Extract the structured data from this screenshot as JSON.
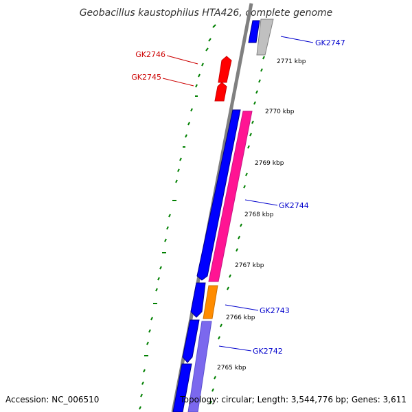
{
  "title": "Geobacillus kaustophilus HTA426, complete genome",
  "footer": {
    "accession": "Accession: NC_006510",
    "summary": "Topology: circular; Length: 3,544,776 bp; Genes: 3,611"
  },
  "ticks": [
    "2771 kbp",
    "2770 kbp",
    "2769 kbp",
    "2768 kbp",
    "2767 kbp",
    "2766 kbp",
    "2765 kbp"
  ],
  "genes": [
    {
      "id": "GK2747",
      "strand": "forward",
      "color": "#0000ff"
    },
    {
      "id": "GK2746",
      "strand": "reverse",
      "color": "#ff0000"
    },
    {
      "id": "GK2745",
      "strand": "reverse",
      "color": "#ff0000"
    },
    {
      "id": "GK2744",
      "strand": "forward",
      "color": "#0000ff"
    },
    {
      "id": "GK2743",
      "strand": "forward",
      "color": "#0000ff"
    },
    {
      "id": "GK2742",
      "strand": "forward",
      "color": "#0000ff"
    }
  ],
  "colors": {
    "backbone": "#808080",
    "gc_skew": "#008000",
    "cds": "#0000ff",
    "cds_forward": "#ff1493",
    "cds_gray": "#c0c0c0",
    "cds_orange": "#ff8c00",
    "cds_purple": "#7b68ee",
    "reverse_gene": "#ff0000",
    "forward_label": "#0000cc",
    "reverse_label": "#cc0000"
  }
}
